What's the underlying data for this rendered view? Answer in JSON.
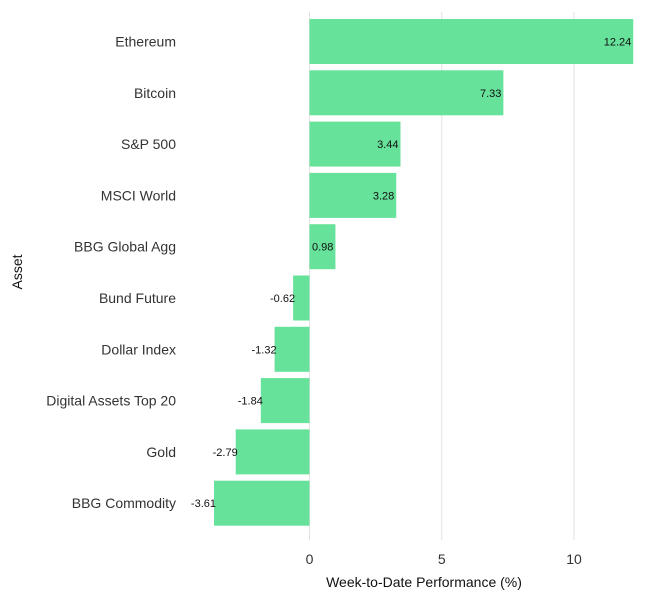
{
  "chart_data": {
    "type": "bar",
    "orientation": "horizontal",
    "categories": [
      "Ethereum",
      "Bitcoin",
      "S&P 500",
      "MSCI World",
      "BBG Global Agg",
      "Bund Future",
      "Dollar Index",
      "Digital Assets Top 20",
      "Gold",
      "BBG Commodity"
    ],
    "values": [
      12.24,
      7.33,
      3.44,
      3.28,
      0.98,
      -0.62,
      -1.32,
      -1.84,
      -2.79,
      -3.61
    ],
    "data_labels": [
      "12.24",
      "7.33",
      "3.44",
      "3.28",
      "0.98",
      "-0.62",
      "-1.32",
      "-1.84",
      "-2.79",
      "-3.61"
    ],
    "xlabel": "Week-to-Date Performance (%)",
    "ylabel": "Asset",
    "xticks": [
      0,
      5,
      10
    ],
    "xtick_labels": [
      "0",
      "5",
      "10"
    ],
    "xlim": [
      -4.5,
      12.8
    ],
    "grid": "vertical",
    "legend": "none",
    "bar_color": "#5fe095"
  }
}
